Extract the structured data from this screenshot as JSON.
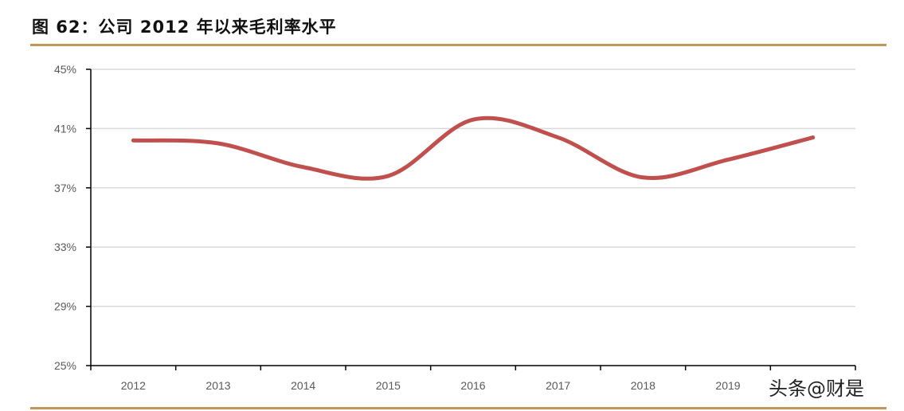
{
  "header": {
    "title": "图 62：公司 2012 年以来毛利率水平"
  },
  "watermark": "头条@财是",
  "colors": {
    "line": "#c0504d",
    "rule": "#c0965a",
    "grid": "#d9d9d9",
    "axis": "#000000",
    "tick_text": "#595959"
  },
  "chart_data": {
    "type": "line",
    "title": "公司 2012 年以来毛利率水平",
    "xlabel": "",
    "ylabel": "",
    "categories": [
      "2012",
      "2013",
      "2014",
      "2015",
      "2016",
      "2017",
      "2018",
      "2019",
      ""
    ],
    "series": [
      {
        "name": "毛利率",
        "values": [
          40.2,
          40.0,
          38.4,
          37.8,
          41.6,
          40.4,
          37.7,
          38.9,
          40.4
        ],
        "smooth": true,
        "color": "#c0504d"
      }
    ],
    "ylim": [
      25,
      45
    ],
    "yticks": [
      "25%",
      "29%",
      "33%",
      "37%",
      "41%",
      "45%"
    ],
    "ytick_values": [
      25,
      29,
      33,
      37,
      41,
      45
    ],
    "grid": true,
    "legend": "none",
    "note": "The final data point has no visible category label; the watermark covers that label position."
  }
}
